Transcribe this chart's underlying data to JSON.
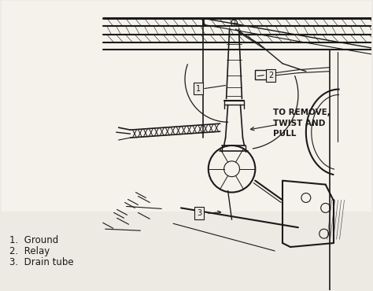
{
  "background_color": "#ede9e3",
  "line_color": "#1a1a1a",
  "label_items": [
    "1.  Ground",
    "2.  Relay",
    "3.  Drain tube"
  ],
  "annotation_text": "TO REMOVE,\nTWIST AND\nPULL",
  "annotation_fontsize": 7.5,
  "label_fontsize": 8.5,
  "figsize": [
    4.74,
    3.7
  ],
  "dpi": 100
}
